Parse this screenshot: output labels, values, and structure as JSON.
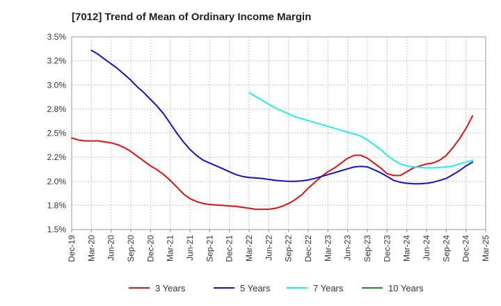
{
  "chart_data": {
    "type": "line",
    "title": "[7012]  Trend of Mean of Ordinary Income Margin",
    "xlabel": "",
    "ylabel": "",
    "x_ticks": [
      "Dec-19",
      "Mar-20",
      "Jun-20",
      "Sep-20",
      "Dec-20",
      "Mar-21",
      "Jun-21",
      "Sep-21",
      "Dec-21",
      "Mar-22",
      "Jun-22",
      "Sep-22",
      "Dec-22",
      "Mar-23",
      "Jun-23",
      "Sep-23",
      "Dec-23",
      "Mar-24",
      "Jun-24",
      "Sep-24",
      "Dec-24",
      "Mar-25"
    ],
    "y_ticks": [
      "1.5%",
      "1.8%",
      "2.0%",
      "2.2%",
      "2.5%",
      "2.8%",
      "3.0%",
      "3.2%",
      "3.5%"
    ],
    "ylim": [
      1.5,
      3.5
    ],
    "grid": true,
    "legend_position": "bottom",
    "series": [
      {
        "name": "3 Years",
        "color": "#dd1111",
        "points": [
          [
            "Dec-19",
            2.45
          ],
          [
            "Jan-20",
            2.43
          ],
          [
            "Feb-20",
            2.42
          ],
          [
            "Mar-20",
            2.42
          ],
          [
            "Apr-20",
            2.42
          ],
          [
            "May-20",
            2.41
          ],
          [
            "Jun-20",
            2.4
          ],
          [
            "Jul-20",
            2.38
          ],
          [
            "Aug-20",
            2.35
          ],
          [
            "Sep-20",
            2.31
          ],
          [
            "Oct-20",
            2.26
          ],
          [
            "Nov-20",
            2.21
          ],
          [
            "Dec-20",
            2.16
          ],
          [
            "Jan-21",
            2.12
          ],
          [
            "Feb-21",
            2.07
          ],
          [
            "Mar-21",
            2.01
          ],
          [
            "Apr-21",
            1.94
          ],
          [
            "May-21",
            1.87
          ],
          [
            "Jun-21",
            1.82
          ],
          [
            "Jul-21",
            1.79
          ],
          [
            "Aug-21",
            1.77
          ],
          [
            "Sep-21",
            1.76
          ],
          [
            "Oct-21",
            1.755
          ],
          [
            "Nov-21",
            1.75
          ],
          [
            "Dec-21",
            1.745
          ],
          [
            "Jan-22",
            1.74
          ],
          [
            "Feb-22",
            1.73
          ],
          [
            "Mar-22",
            1.72
          ],
          [
            "Apr-22",
            1.71
          ],
          [
            "May-22",
            1.71
          ],
          [
            "Jun-22",
            1.71
          ],
          [
            "Jul-22",
            1.72
          ],
          [
            "Aug-22",
            1.74
          ],
          [
            "Sep-22",
            1.77
          ],
          [
            "Oct-22",
            1.81
          ],
          [
            "Nov-22",
            1.86
          ],
          [
            "Dec-22",
            1.93
          ],
          [
            "Jan-23",
            1.99
          ],
          [
            "Feb-23",
            2.05
          ],
          [
            "Mar-23",
            2.1
          ],
          [
            "Apr-23",
            2.14
          ],
          [
            "May-23",
            2.19
          ],
          [
            "Jun-23",
            2.24
          ],
          [
            "Jul-23",
            2.27
          ],
          [
            "Aug-23",
            2.27
          ],
          [
            "Sep-23",
            2.24
          ],
          [
            "Oct-23",
            2.19
          ],
          [
            "Nov-23",
            2.14
          ],
          [
            "Dec-23",
            2.08
          ],
          [
            "Jan-24",
            2.06
          ],
          [
            "Feb-24",
            2.06
          ],
          [
            "Mar-24",
            2.1
          ],
          [
            "Apr-24",
            2.14
          ],
          [
            "May-24",
            2.16
          ],
          [
            "Jun-24",
            2.18
          ],
          [
            "Jul-24",
            2.19
          ],
          [
            "Aug-24",
            2.22
          ],
          [
            "Sep-24",
            2.27
          ],
          [
            "Oct-24",
            2.35
          ],
          [
            "Nov-24",
            2.44
          ],
          [
            "Dec-24",
            2.55
          ],
          [
            "Jan-25",
            2.68
          ]
        ]
      },
      {
        "name": "5 Years",
        "color": "#1111cc",
        "points": [
          [
            "Mar-20",
            3.36
          ],
          [
            "Apr-20",
            3.32
          ],
          [
            "May-20",
            3.27
          ],
          [
            "Jun-20",
            3.22
          ],
          [
            "Jul-20",
            3.17
          ],
          [
            "Aug-20",
            3.11
          ],
          [
            "Sep-20",
            3.05
          ],
          [
            "Oct-20",
            2.98
          ],
          [
            "Nov-20",
            2.92
          ],
          [
            "Dec-20",
            2.85
          ],
          [
            "Jan-21",
            2.78
          ],
          [
            "Feb-21",
            2.7
          ],
          [
            "Mar-21",
            2.6
          ],
          [
            "Apr-21",
            2.5
          ],
          [
            "May-21",
            2.41
          ],
          [
            "Jun-21",
            2.33
          ],
          [
            "Jul-21",
            2.27
          ],
          [
            "Aug-21",
            2.22
          ],
          [
            "Sep-21",
            2.19
          ],
          [
            "Oct-21",
            2.16
          ],
          [
            "Nov-21",
            2.13
          ],
          [
            "Dec-21",
            2.1
          ],
          [
            "Jan-22",
            2.07
          ],
          [
            "Feb-22",
            2.05
          ],
          [
            "Mar-22",
            2.04
          ],
          [
            "Apr-22",
            2.035
          ],
          [
            "May-22",
            2.03
          ],
          [
            "Jun-22",
            2.02
          ],
          [
            "Jul-22",
            2.01
          ],
          [
            "Aug-22",
            2.005
          ],
          [
            "Sep-22",
            2.0
          ],
          [
            "Oct-22",
            2.0
          ],
          [
            "Nov-22",
            2.005
          ],
          [
            "Dec-22",
            2.015
          ],
          [
            "Jan-23",
            2.03
          ],
          [
            "Feb-23",
            2.05
          ],
          [
            "Mar-23",
            2.07
          ],
          [
            "Apr-23",
            2.09
          ],
          [
            "May-23",
            2.11
          ],
          [
            "Jun-23",
            2.13
          ],
          [
            "Jul-23",
            2.15
          ],
          [
            "Aug-23",
            2.155
          ],
          [
            "Sep-23",
            2.15
          ],
          [
            "Oct-23",
            2.12
          ],
          [
            "Nov-23",
            2.09
          ],
          [
            "Dec-23",
            2.05
          ],
          [
            "Jan-24",
            2.01
          ],
          [
            "Feb-24",
            1.99
          ],
          [
            "Mar-24",
            1.98
          ],
          [
            "Apr-24",
            1.975
          ],
          [
            "May-24",
            1.975
          ],
          [
            "Jun-24",
            1.98
          ],
          [
            "Jul-24",
            1.99
          ],
          [
            "Aug-24",
            2.01
          ],
          [
            "Sep-24",
            2.03
          ],
          [
            "Oct-24",
            2.07
          ],
          [
            "Nov-24",
            2.11
          ],
          [
            "Dec-24",
            2.16
          ],
          [
            "Jan-25",
            2.2
          ]
        ]
      },
      {
        "name": "7 Years",
        "color": "#22eeee",
        "points": [
          [
            "Mar-22",
            2.92
          ],
          [
            "Apr-22",
            2.88
          ],
          [
            "May-22",
            2.84
          ],
          [
            "Jun-22",
            2.8
          ],
          [
            "Jul-22",
            2.76
          ],
          [
            "Aug-22",
            2.73
          ],
          [
            "Sep-22",
            2.7
          ],
          [
            "Oct-22",
            2.67
          ],
          [
            "Nov-22",
            2.65
          ],
          [
            "Dec-22",
            2.63
          ],
          [
            "Jan-23",
            2.61
          ],
          [
            "Feb-23",
            2.59
          ],
          [
            "Mar-23",
            2.57
          ],
          [
            "Apr-23",
            2.55
          ],
          [
            "May-23",
            2.53
          ],
          [
            "Jun-23",
            2.51
          ],
          [
            "Jul-23",
            2.49
          ],
          [
            "Aug-23",
            2.47
          ],
          [
            "Sep-23",
            2.43
          ],
          [
            "Oct-23",
            2.38
          ],
          [
            "Nov-23",
            2.33
          ],
          [
            "Dec-23",
            2.27
          ],
          [
            "Jan-24",
            2.22
          ],
          [
            "Feb-24",
            2.18
          ],
          [
            "Mar-24",
            2.16
          ],
          [
            "Apr-24",
            2.15
          ],
          [
            "May-24",
            2.145
          ],
          [
            "Jun-24",
            2.14
          ],
          [
            "Jul-24",
            2.14
          ],
          [
            "Aug-24",
            2.145
          ],
          [
            "Sep-24",
            2.15
          ],
          [
            "Oct-24",
            2.16
          ],
          [
            "Nov-24",
            2.18
          ],
          [
            "Dec-24",
            2.2
          ],
          [
            "Jan-25",
            2.22
          ]
        ]
      },
      {
        "name": "10 Years",
        "color": "#228822",
        "points": []
      }
    ]
  }
}
